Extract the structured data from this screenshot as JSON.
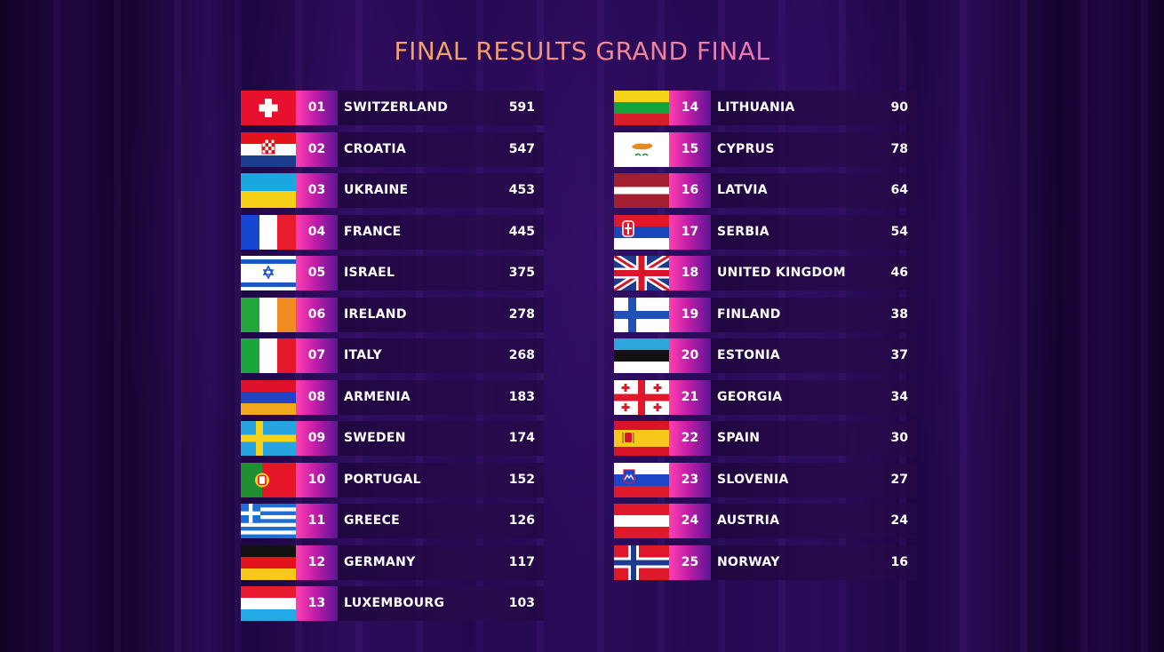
{
  "title": "FINAL RESULTS GRAND FINAL",
  "results": [
    {
      "rank": "01",
      "country": "SWITZERLAND",
      "points": "591",
      "flag": "switzerland"
    },
    {
      "rank": "02",
      "country": "CROATIA",
      "points": "547",
      "flag": "croatia"
    },
    {
      "rank": "03",
      "country": "UKRAINE",
      "points": "453",
      "flag": "ukraine"
    },
    {
      "rank": "04",
      "country": "FRANCE",
      "points": "445",
      "flag": "france"
    },
    {
      "rank": "05",
      "country": "ISRAEL",
      "points": "375",
      "flag": "israel"
    },
    {
      "rank": "06",
      "country": "IRELAND",
      "points": "278",
      "flag": "ireland"
    },
    {
      "rank": "07",
      "country": "ITALY",
      "points": "268",
      "flag": "italy"
    },
    {
      "rank": "08",
      "country": "ARMENIA",
      "points": "183",
      "flag": "armenia"
    },
    {
      "rank": "09",
      "country": "SWEDEN",
      "points": "174",
      "flag": "sweden"
    },
    {
      "rank": "10",
      "country": "PORTUGAL",
      "points": "152",
      "flag": "portugal"
    },
    {
      "rank": "11",
      "country": "GREECE",
      "points": "126",
      "flag": "greece"
    },
    {
      "rank": "12",
      "country": "GERMANY",
      "points": "117",
      "flag": "germany"
    },
    {
      "rank": "13",
      "country": "LUXEMBOURG",
      "points": "103",
      "flag": "luxembourg"
    },
    {
      "rank": "14",
      "country": "LITHUANIA",
      "points": "90",
      "flag": "lithuania"
    },
    {
      "rank": "15",
      "country": "CYPRUS",
      "points": "78",
      "flag": "cyprus"
    },
    {
      "rank": "16",
      "country": "LATVIA",
      "points": "64",
      "flag": "latvia"
    },
    {
      "rank": "17",
      "country": "SERBIA",
      "points": "54",
      "flag": "serbia"
    },
    {
      "rank": "18",
      "country": "UNITED KINGDOM",
      "points": "46",
      "flag": "united-kingdom"
    },
    {
      "rank": "19",
      "country": "FINLAND",
      "points": "38",
      "flag": "finland"
    },
    {
      "rank": "20",
      "country": "ESTONIA",
      "points": "37",
      "flag": "estonia"
    },
    {
      "rank": "21",
      "country": "GEORGIA",
      "points": "34",
      "flag": "georgia"
    },
    {
      "rank": "22",
      "country": "SPAIN",
      "points": "30",
      "flag": "spain"
    },
    {
      "rank": "23",
      "country": "SLOVENIA",
      "points": "27",
      "flag": "slovenia"
    },
    {
      "rank": "24",
      "country": "AUSTRIA",
      "points": "24",
      "flag": "austria"
    },
    {
      "rank": "25",
      "country": "NORWAY",
      "points": "16",
      "flag": "norway"
    }
  ]
}
